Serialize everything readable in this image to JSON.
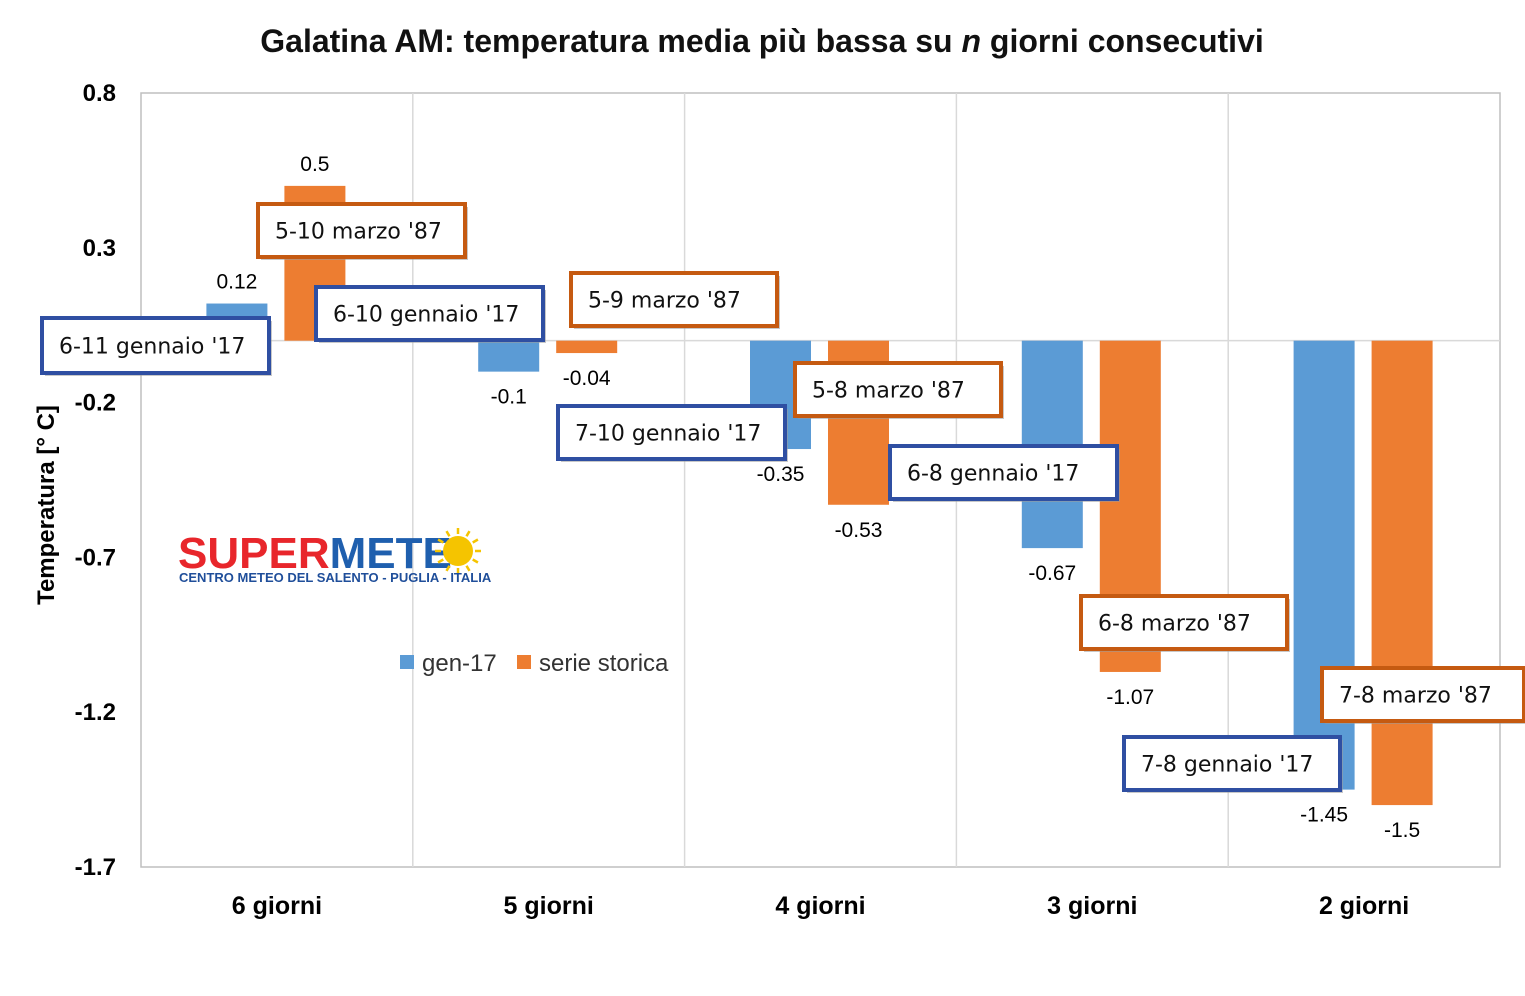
{
  "chart_data": {
    "type": "bar",
    "title": {
      "pre": "Galatina AM: temperatura media più bassa su ",
      "italic": "n",
      "post": " giorni consecutivi"
    },
    "ylabel": "Temperatura [° C]",
    "xlabel": "",
    "ylim": [
      -1.7,
      0.8
    ],
    "yticks": [
      0.8,
      0.3,
      -0.2,
      -0.7,
      -1.2,
      -1.7
    ],
    "grid": true,
    "legend": "center-left",
    "categories": [
      "6 giorni",
      "5 giorni",
      "4 giorni",
      "3 giorni",
      "2 giorni"
    ],
    "series": [
      {
        "name": "gen-17",
        "color": "#5b9bd5",
        "callout_border": "#2f4fa2",
        "values": [
          0.12,
          -0.1,
          -0.35,
          -0.67,
          -1.45
        ],
        "labels": [
          "0.12",
          "-0.1",
          "-0.35",
          "-0.67",
          "-1.45"
        ],
        "periods": [
          "6-11 gennaio '17",
          "6-10 gennaio '17",
          "7-10 gennaio '17",
          "6-8  gennaio '17",
          "7-8  gennaio '17"
        ]
      },
      {
        "name": "serie storica",
        "color": "#ed7d31",
        "callout_border": "#c55a11",
        "values": [
          0.5,
          -0.04,
          -0.53,
          -1.07,
          -1.5
        ],
        "labels": [
          "0.5",
          "-0.04",
          "-0.53",
          "-1.07",
          "-1.5"
        ],
        "periods": [
          "5-10 marzo '87",
          "5-9 marzo '87",
          "5-8 marzo '87",
          "6-8 marzo '87",
          "7-8 marzo '87"
        ]
      }
    ]
  },
  "logo": {
    "part1": "SUPER",
    "part2": "METE",
    "subtitle": "CENTRO METEO DEL SALENTO - PUGLIA - ITALIA",
    "color1": "#e8262b",
    "color2": "#1f5fae",
    "sun_color": "#f5c400"
  }
}
